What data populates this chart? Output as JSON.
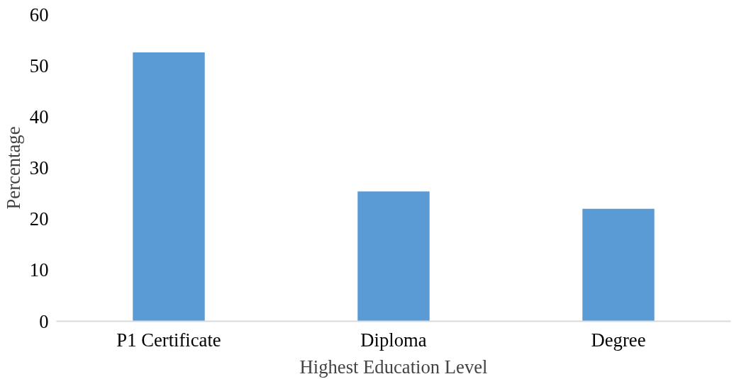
{
  "chart_data": {
    "type": "bar",
    "xlabel": "Highest Education Level",
    "ylabel": "Percentage",
    "categories": [
      "P1 Certificate",
      "Diploma",
      "Degree"
    ],
    "values": [
      52.6,
      25.4,
      22.0
    ],
    "color": "#5b9bd5",
    "ylim": [
      0,
      60
    ],
    "yticks": [
      0,
      10,
      20,
      30,
      40,
      50,
      60
    ],
    "grid": false
  }
}
